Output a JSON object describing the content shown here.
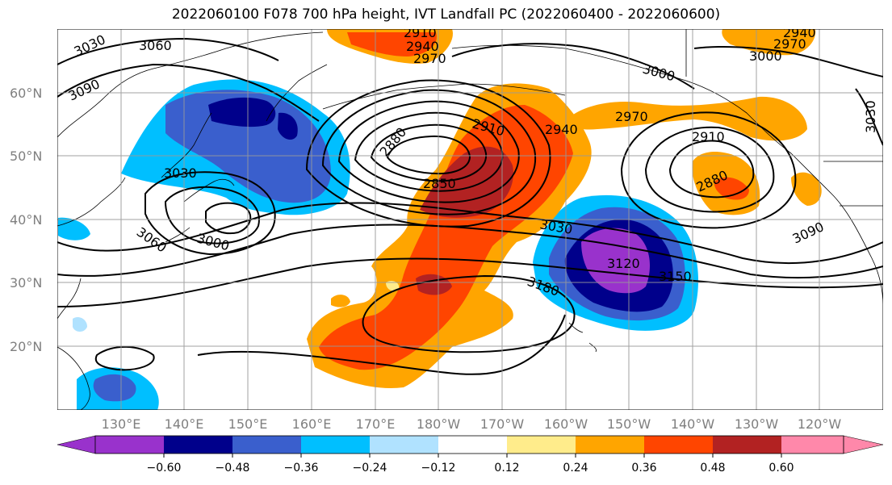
{
  "title": "2022060100 F078 700 hPa height, IVT Landfall PC (2022060400 - 2022060600)",
  "lat_labels": [
    "60°N",
    "50°N",
    "40°N",
    "30°N",
    "20°N"
  ],
  "lon_labels": [
    "130°E",
    "140°E",
    "150°E",
    "160°E",
    "170°E",
    "180°W",
    "170°W",
    "160°W",
    "150°W",
    "140°W",
    "130°W",
    "120°W"
  ],
  "contour_labels": [
    "3030",
    "3060",
    "3090",
    "2910",
    "2940",
    "2970",
    "3000",
    "2970",
    "2940",
    "3000",
    "2970",
    "2880",
    "2910",
    "2940",
    "2850",
    "3030",
    "3000",
    "3060",
    "2910",
    "2880",
    "3030",
    "3120",
    "3150",
    "3180",
    "3090",
    "3030"
  ],
  "colorbar": {
    "colors": [
      "#9932cc",
      "#00008b",
      "#3a5fcd",
      "#00bfff",
      "#b0e2ff",
      "#ffffff",
      "#ffec8b",
      "#ffa500",
      "#ff4500",
      "#b22222",
      "#ff88aa"
    ],
    "tick_labels": [
      "−0.60",
      "−0.48",
      "−0.36",
      "−0.24",
      "−0.12",
      "0.12",
      "0.24",
      "0.36",
      "0.48",
      "0.60"
    ]
  }
}
